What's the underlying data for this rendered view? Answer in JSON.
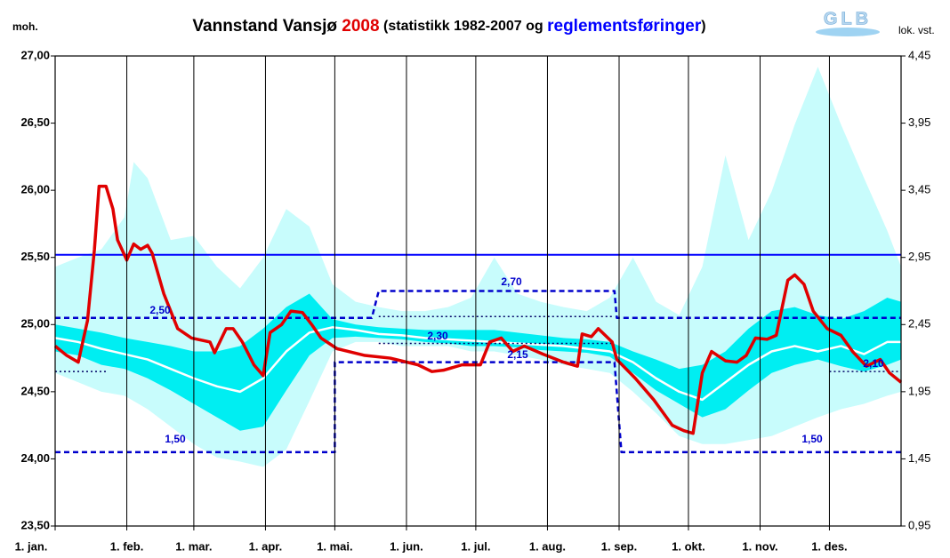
{
  "chart_data": {
    "type": "line",
    "title": [
      {
        "text": "Vannstand Vansjø ",
        "color": "#000000"
      },
      {
        "text": "2008",
        "color": "#e00000"
      },
      {
        "text": " (statistikk 1982-2007 og ",
        "color": "#000000"
      },
      {
        "text": "reglementsføringer",
        "color": "#0000ff"
      },
      {
        "text": ")",
        "color": "#000000"
      }
    ],
    "y_label": "moh.",
    "y2_label": "lok. vst.",
    "logo": "GLB",
    "xlim": [
      0,
      366
    ],
    "xticks": [
      {
        "value": 0,
        "label": "1. jan."
      },
      {
        "value": 31,
        "label": "1. feb."
      },
      {
        "value": 60,
        "label": "1. mar."
      },
      {
        "value": 91,
        "label": "1. apr."
      },
      {
        "value": 121,
        "label": "1. mai."
      },
      {
        "value": 152,
        "label": "1. jun."
      },
      {
        "value": 182,
        "label": "1. jul."
      },
      {
        "value": 213,
        "label": "1. aug."
      },
      {
        "value": 244,
        "label": "1. sep."
      },
      {
        "value": 274,
        "label": "1. okt."
      },
      {
        "value": 305,
        "label": "1. nov."
      },
      {
        "value": 335,
        "label": "1. des."
      }
    ],
    "ylim": [
      23.5,
      27
    ],
    "yticks": [
      {
        "value": 23.5,
        "label": "23,50"
      },
      {
        "value": 24,
        "label": "24,00"
      },
      {
        "value": 24.5,
        "label": "24,50"
      },
      {
        "value": 25,
        "label": "25,00"
      },
      {
        "value": 25.5,
        "label": "25,50"
      },
      {
        "value": 26,
        "label": "26,00"
      },
      {
        "value": 26.5,
        "label": "26,50"
      },
      {
        "value": 27,
        "label": "27,00"
      }
    ],
    "y2lim": [
      0.95,
      4.45
    ],
    "y2ticks": [
      {
        "value": 0.95,
        "label": "0,95"
      },
      {
        "value": 1.45,
        "label": "1,45"
      },
      {
        "value": 1.95,
        "label": "1,95"
      },
      {
        "value": 2.45,
        "label": "2,45"
      },
      {
        "value": 2.95,
        "label": "2,95"
      },
      {
        "value": 3.45,
        "label": "3,45"
      },
      {
        "value": 3.95,
        "label": "3,95"
      },
      {
        "value": 4.45,
        "label": "4,45"
      }
    ],
    "grid": "x",
    "series": [
      {
        "kind": "band",
        "color": "#c8fcfc",
        "x": [
          0,
          10,
          20,
          30,
          34,
          40,
          50,
          60,
          70,
          80,
          90,
          100,
          110,
          120,
          130,
          140,
          150,
          160,
          170,
          180,
          190,
          200,
          210,
          220,
          230,
          240,
          250,
          260,
          270,
          280,
          290,
          300,
          310,
          320,
          330,
          340,
          350,
          360,
          366
        ],
        "high": [
          25.43,
          25.5,
          25.56,
          25.8,
          26.21,
          26.09,
          25.63,
          25.66,
          25.43,
          25.27,
          25.5,
          25.86,
          25.73,
          25.3,
          25.17,
          25.13,
          25.1,
          25.1,
          25.13,
          25.2,
          25.5,
          25.23,
          25.17,
          25.13,
          25.1,
          25.2,
          25.5,
          25.17,
          25.07,
          25.43,
          26.26,
          25.63,
          25.99,
          26.49,
          26.92,
          26.49,
          26.09,
          25.7,
          25.43
        ],
        "low": [
          24.64,
          24.57,
          24.5,
          24.47,
          24.43,
          24.37,
          24.24,
          24.11,
          24.01,
          23.98,
          23.94,
          24.07,
          24.43,
          24.8,
          24.87,
          24.87,
          24.84,
          24.84,
          24.84,
          24.8,
          24.8,
          24.77,
          24.74,
          24.7,
          24.67,
          24.64,
          24.5,
          24.34,
          24.17,
          24.11,
          24.11,
          24.14,
          24.17,
          24.24,
          24.31,
          24.37,
          24.41,
          24.47,
          24.5
        ]
      },
      {
        "kind": "band",
        "color": "#00eef2",
        "x": [
          0,
          10,
          20,
          30,
          40,
          50,
          60,
          70,
          80,
          90,
          100,
          110,
          120,
          130,
          140,
          150,
          160,
          170,
          180,
          190,
          200,
          210,
          220,
          230,
          240,
          250,
          260,
          270,
          280,
          290,
          300,
          310,
          320,
          330,
          340,
          350,
          360,
          366
        ],
        "high": [
          25.0,
          24.97,
          24.94,
          24.9,
          24.87,
          24.84,
          24.8,
          24.8,
          24.84,
          24.97,
          25.13,
          25.23,
          25.04,
          25.0,
          24.98,
          24.97,
          24.96,
          24.96,
          24.96,
          24.96,
          24.94,
          24.92,
          24.9,
          24.89,
          24.87,
          24.8,
          24.74,
          24.67,
          24.7,
          24.8,
          24.97,
          25.1,
          25.13,
          25.07,
          25.04,
          25.1,
          25.2,
          25.17
        ],
        "low": [
          24.8,
          24.77,
          24.7,
          24.67,
          24.6,
          24.51,
          24.41,
          24.31,
          24.21,
          24.24,
          24.51,
          24.77,
          24.9,
          24.91,
          24.9,
          24.89,
          24.87,
          24.86,
          24.84,
          24.84,
          24.83,
          24.81,
          24.8,
          24.79,
          24.76,
          24.64,
          24.51,
          24.41,
          24.31,
          24.37,
          24.51,
          24.64,
          24.7,
          24.74,
          24.69,
          24.65,
          24.7,
          24.74
        ]
      },
      {
        "kind": "line",
        "color": "#ffffff",
        "width": 2.5,
        "x": [
          0,
          10,
          20,
          30,
          40,
          50,
          60,
          70,
          80,
          90,
          100,
          110,
          120,
          130,
          140,
          150,
          160,
          170,
          180,
          190,
          200,
          210,
          220,
          230,
          240,
          250,
          260,
          270,
          280,
          290,
          300,
          310,
          320,
          330,
          340,
          350,
          360,
          366
        ],
        "values": [
          24.9,
          24.87,
          24.82,
          24.78,
          24.74,
          24.67,
          24.6,
          24.54,
          24.5,
          24.6,
          24.8,
          24.94,
          24.98,
          24.96,
          24.93,
          24.92,
          24.9,
          24.89,
          24.88,
          24.87,
          24.86,
          24.85,
          24.84,
          24.82,
          24.8,
          24.72,
          24.6,
          24.5,
          24.44,
          24.57,
          24.7,
          24.8,
          24.84,
          24.8,
          24.84,
          24.78,
          24.87,
          24.87
        ]
      },
      {
        "kind": "line",
        "color": "#0000ff",
        "width": 2,
        "x": [
          0,
          366
        ],
        "values": [
          25.52,
          25.52
        ]
      },
      {
        "kind": "line",
        "color": "#0000cc",
        "width": 2.5,
        "dash": "dashed",
        "x": [
          0,
          137,
          140,
          242,
          243,
          366
        ],
        "values": [
          25.05,
          25.05,
          25.25,
          25.25,
          25.05,
          25.05
        ]
      },
      {
        "kind": "line",
        "color": "#0000cc",
        "width": 2.5,
        "dash": "dashed",
        "x": [
          0,
          121,
          121,
          242,
          245,
          366
        ],
        "values": [
          24.05,
          24.05,
          24.72,
          24.72,
          24.05,
          24.05
        ]
      },
      {
        "kind": "line",
        "color": "#000066",
        "width": 1.5,
        "dash": "dotted",
        "x": [
          0,
          23
        ],
        "values": [
          24.65,
          24.65
        ]
      },
      {
        "kind": "line",
        "color": "#000066",
        "width": 1.5,
        "dash": "dotted",
        "x": [
          335,
          366
        ],
        "values": [
          24.65,
          24.65
        ]
      },
      {
        "kind": "line",
        "color": "#000066",
        "width": 1.5,
        "dash": "dotted",
        "x": [
          140,
          242
        ],
        "values": [
          24.86,
          24.86
        ]
      },
      {
        "kind": "line",
        "color": "#000066",
        "width": 1.5,
        "dash": "dotted",
        "x": [
          140,
          242
        ],
        "values": [
          25.06,
          25.06
        ]
      },
      {
        "kind": "line",
        "color": "#e00000",
        "width": 3.5,
        "x": [
          0,
          5,
          10,
          14,
          17,
          19,
          22,
          25,
          27,
          31,
          34,
          37,
          40,
          42,
          47,
          53,
          59,
          67,
          69,
          74,
          77,
          81,
          86,
          90,
          93,
          98,
          102,
          107,
          111,
          115,
          122,
          134,
          145,
          157,
          163,
          168,
          176,
          184,
          188,
          193,
          198,
          203,
          211,
          220,
          226,
          228,
          232,
          235,
          241,
          243,
          251,
          259,
          267,
          272,
          276,
          280,
          284,
          290,
          295,
          299,
          303,
          308,
          312,
          317,
          320,
          324,
          328,
          334,
          340,
          345,
          351,
          357,
          361,
          366
        ],
        "values": [
          24.84,
          24.77,
          24.72,
          25.03,
          25.56,
          26.03,
          26.03,
          25.86,
          25.63,
          25.48,
          25.6,
          25.56,
          25.59,
          25.53,
          25.23,
          24.97,
          24.9,
          24.87,
          24.79,
          24.97,
          24.97,
          24.87,
          24.7,
          24.62,
          24.94,
          25.0,
          25.1,
          25.09,
          25.0,
          24.9,
          24.82,
          24.77,
          24.75,
          24.7,
          24.65,
          24.66,
          24.7,
          24.7,
          24.87,
          24.9,
          24.8,
          24.84,
          24.78,
          24.72,
          24.69,
          24.93,
          24.91,
          24.97,
          24.87,
          24.74,
          24.6,
          24.44,
          24.25,
          24.21,
          24.19,
          24.64,
          24.8,
          24.73,
          24.72,
          24.77,
          24.9,
          24.89,
          24.92,
          25.33,
          25.37,
          25.3,
          25.1,
          24.97,
          24.92,
          24.8,
          24.69,
          24.74,
          24.64,
          24.57
        ]
      }
    ],
    "annotations": [
      {
        "text": "2,50"
      },
      {
        "text": "2,70"
      },
      {
        "text": "2,30"
      },
      {
        "text": "2,15"
      },
      {
        "text": "2,10"
      },
      {
        "text": "1,50"
      },
      {
        "text": "1,50"
      }
    ]
  }
}
